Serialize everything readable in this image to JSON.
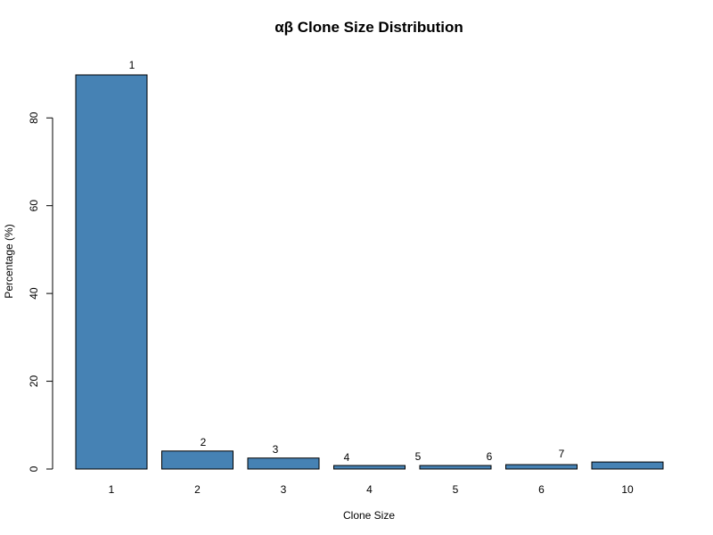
{
  "chart_data": {
    "type": "bar",
    "title": "αβ Clone Size Distribution",
    "xlabel": "Clone Size",
    "ylabel": "Percentage (%)",
    "categories": [
      "1",
      "2",
      "3",
      "4",
      "5",
      "6",
      "10"
    ],
    "values": [
      89.8,
      4.1,
      2.5,
      0.8,
      0.8,
      1.0,
      1.6
    ],
    "ylim": [
      0,
      90
    ],
    "yticks": [
      0,
      20,
      40,
      60,
      80
    ],
    "bar_color": "#4682B4",
    "annotations": [
      "1",
      "2",
      "3",
      "4",
      "5",
      "6",
      "7"
    ],
    "grid": false,
    "legend": "none"
  }
}
